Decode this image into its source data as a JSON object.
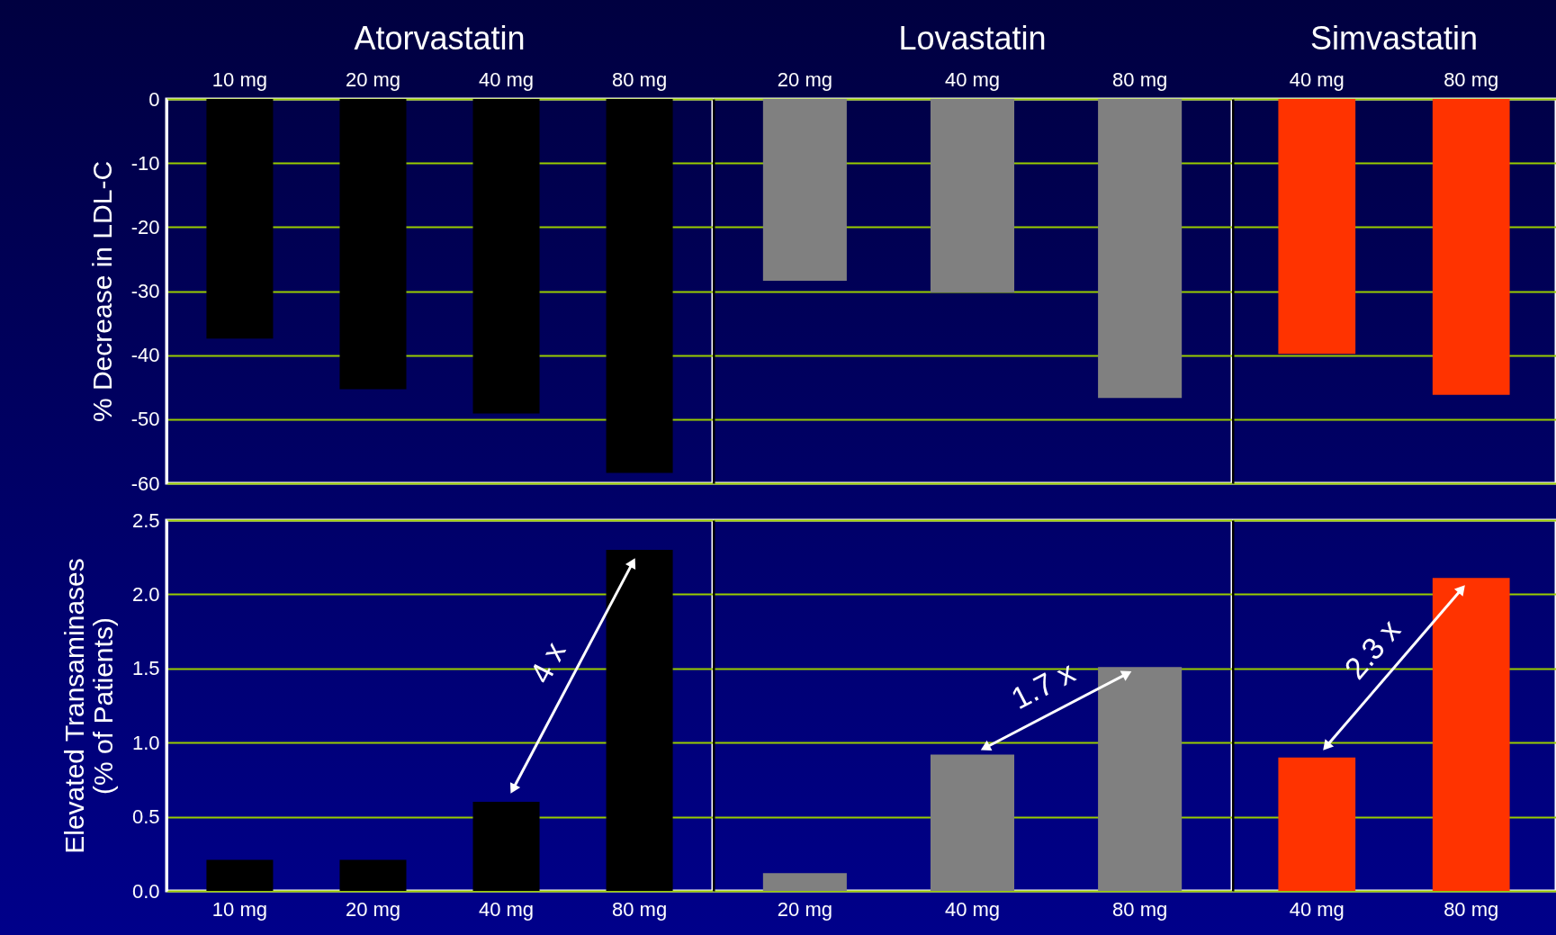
{
  "chart_data": [
    {
      "type": "bar",
      "title": "Atorvastatin",
      "ylabel": "% Decrease in LDL-C",
      "categories": [
        "10 mg",
        "20 mg",
        "40 mg",
        "80 mg"
      ],
      "values": [
        -37.4,
        -45.3,
        -49.1,
        -58.4
      ],
      "color": "#000000",
      "ylim": [
        -60,
        0
      ],
      "yticks": [
        0,
        -10,
        -20,
        -30,
        -40,
        -50,
        -60
      ],
      "grid": "y"
    },
    {
      "type": "bar",
      "title": "Lovastatin",
      "categories": [
        "20 mg",
        "40 mg",
        "80 mg"
      ],
      "values": [
        -28.4,
        -30.2,
        -46.7
      ],
      "color": "#808080",
      "ylim": [
        -60,
        0
      ],
      "yticks": [
        0,
        -10,
        -20,
        -30,
        -40,
        -50,
        -60
      ],
      "grid": "y",
      "tick_labels": "x"
    },
    {
      "type": "bar",
      "title": "Simvastatin",
      "categories": [
        "40 mg",
        "80 mg"
      ],
      "values": [
        -39.8,
        -46.2
      ],
      "color": "#ff3300",
      "ylim": [
        -60,
        0
      ],
      "yticks": [
        0,
        -10,
        -20,
        -30,
        -40,
        -50,
        -60
      ],
      "grid": "y",
      "tick_labels": "x"
    },
    {
      "type": "bar",
      "ylabel": "Elevated Transaminases\n(% of Patients)",
      "categories": [
        "10 mg",
        "20 mg",
        "40 mg",
        "80 mg"
      ],
      "values": [
        0.21,
        0.21,
        0.6,
        2.3
      ],
      "color": "#000000",
      "ylim": [
        0,
        2.5
      ],
      "yticks": [
        {
          "value": 0,
          "label": "0.0"
        },
        0.5,
        {
          "value": 1,
          "label": "1.0"
        },
        1.5,
        {
          "value": 2,
          "label": "2.0"
        },
        2.5
      ],
      "grid": "y",
      "annotations": [
        "4 x"
      ]
    },
    {
      "type": "bar",
      "categories": [
        "20 mg",
        "40 mg",
        "80 mg"
      ],
      "values": [
        0.12,
        0.92,
        1.51
      ],
      "color": "#808080",
      "ylim": [
        0,
        2.5
      ],
      "yticks": [
        0,
        0.5,
        1,
        1.5,
        2,
        2.5
      ],
      "grid": "y",
      "tick_labels": "x",
      "annotations": [
        "1.7 x"
      ]
    },
    {
      "type": "bar",
      "categories": [
        "40 mg",
        "80 mg"
      ],
      "values": [
        0.9,
        2.11
      ],
      "color": "#ff3300",
      "ylim": [
        0,
        2.5
      ],
      "yticks": [
        0,
        0.5,
        1,
        1.5,
        2,
        2.5
      ],
      "grid": "y",
      "tick_labels": "x",
      "annotations": [
        "2.3 x"
      ]
    }
  ]
}
